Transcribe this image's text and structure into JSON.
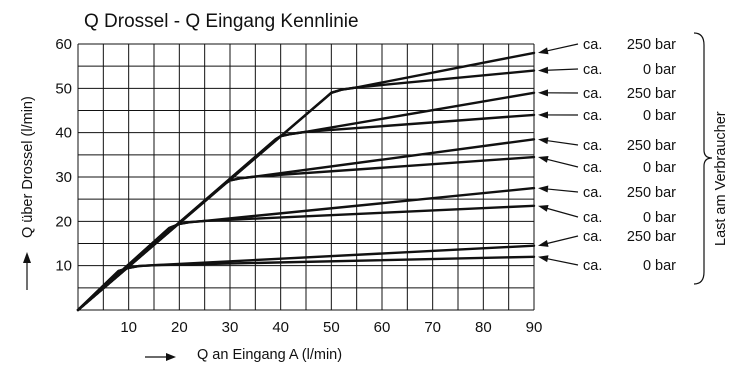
{
  "chart_data": {
    "type": "line",
    "title": "Q Drossel - Q Eingang  Kennlinie",
    "xlabel": "Q an Eingang A (l/min)",
    "ylabel": "Q über Drossel (l/min)",
    "xlim": [
      0,
      90
    ],
    "ylim": [
      0,
      60
    ],
    "x_ticks": [
      10,
      20,
      30,
      40,
      50,
      60,
      70,
      80,
      90
    ],
    "y_ticks": [
      10,
      20,
      30,
      40,
      50,
      60
    ],
    "grid": true,
    "bracket_label": "Last am Verbraucher",
    "series": [
      {
        "label": {
          "prefix": "ca.",
          "value": "250 bar"
        },
        "x": [
          0,
          8,
          10,
          12,
          15,
          90
        ],
        "y": [
          0,
          8.8,
          9.5,
          9.9,
          10.1,
          14.5
        ]
      },
      {
        "label": {
          "prefix": "ca.",
          "value": "0 bar"
        },
        "x": [
          0,
          8,
          10,
          12,
          15,
          90
        ],
        "y": [
          0,
          8.8,
          9.5,
          9.9,
          10.1,
          12.0
        ]
      },
      {
        "label": {
          "prefix": "ca.",
          "value": "250 bar"
        },
        "x": [
          0,
          18,
          20,
          22,
          25,
          90
        ],
        "y": [
          0,
          18.5,
          19.4,
          19.8,
          20.1,
          27.5
        ]
      },
      {
        "label": {
          "prefix": "ca.",
          "value": "0 bar"
        },
        "x": [
          0,
          18,
          20,
          22,
          25,
          90
        ],
        "y": [
          0,
          18.5,
          19.4,
          19.8,
          20.1,
          23.5
        ]
      },
      {
        "label": {
          "prefix": "ca.",
          "value": "250 bar"
        },
        "x": [
          0,
          29,
          30,
          32,
          35,
          90
        ],
        "y": [
          0,
          28.5,
          29.2,
          29.7,
          30.1,
          38.5
        ]
      },
      {
        "label": {
          "prefix": "ca.",
          "value": "0 bar"
        },
        "x": [
          0,
          29,
          30,
          32,
          35,
          90
        ],
        "y": [
          0,
          28.5,
          29.2,
          29.7,
          30.1,
          34.5
        ]
      },
      {
        "label": {
          "prefix": "ca.",
          "value": "250 bar"
        },
        "x": [
          0,
          39,
          40,
          42,
          45,
          90
        ],
        "y": [
          0,
          38.5,
          39.2,
          39.7,
          40.2,
          49.0
        ]
      },
      {
        "label": {
          "prefix": "ca.",
          "value": "0 bar"
        },
        "x": [
          0,
          39,
          40,
          42,
          45,
          90
        ],
        "y": [
          0,
          38.5,
          39.2,
          39.7,
          40.2,
          44.0
        ]
      },
      {
        "label": {
          "prefix": "ca.",
          "value": "250 bar"
        },
        "x": [
          0,
          49,
          50,
          52,
          55,
          90
        ],
        "y": [
          0,
          48.0,
          49.0,
          49.7,
          50.2,
          58.0
        ]
      },
      {
        "label": {
          "prefix": "ca.",
          "value": "0 bar"
        },
        "x": [
          0,
          49,
          50,
          52,
          55,
          90
        ],
        "y": [
          0,
          48.0,
          49.0,
          49.7,
          50.2,
          54.0
        ]
      }
    ]
  }
}
